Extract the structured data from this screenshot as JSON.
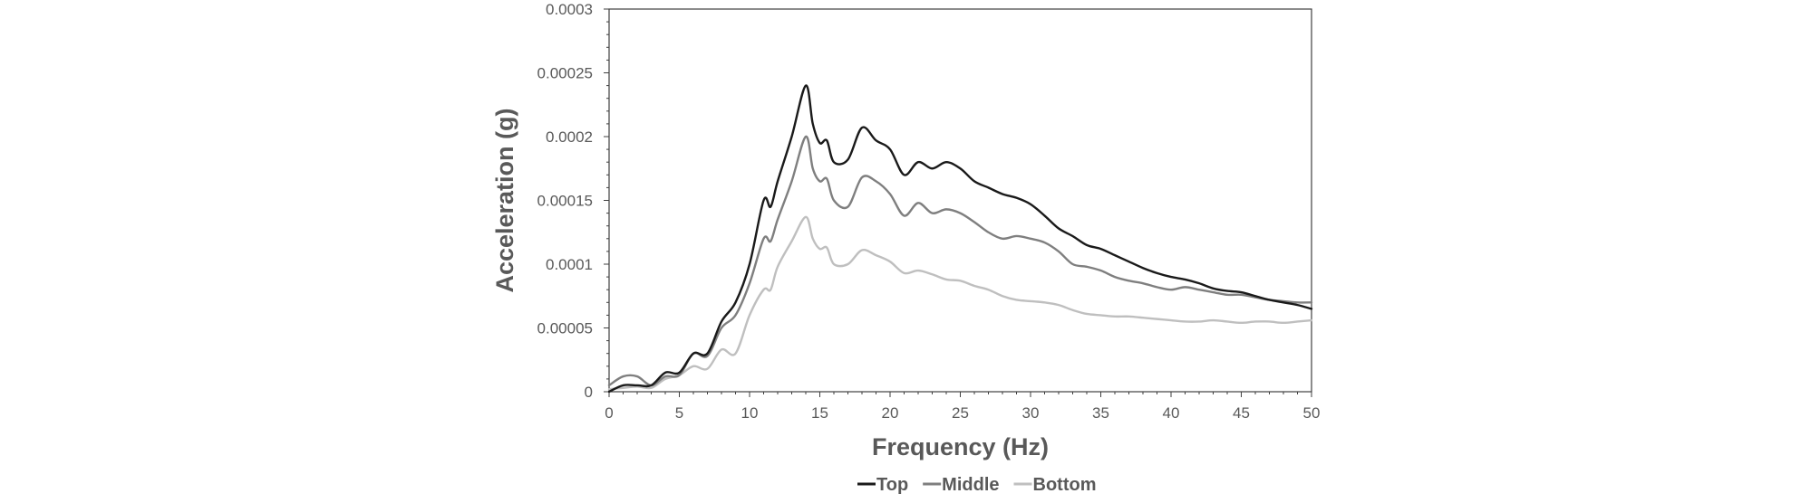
{
  "chart_data": {
    "type": "line",
    "title": "",
    "xlabel": "Frequency (Hz)",
    "ylabel": "Acceleration (g)",
    "xlim": [
      0,
      50
    ],
    "ylim": [
      0,
      0.0003
    ],
    "x_ticks": [
      "0",
      "5",
      "10",
      "15",
      "20",
      "25",
      "30",
      "35",
      "40",
      "45",
      "50"
    ],
    "y_ticks": [
      "0",
      "0.00005",
      "0.0001",
      "0.00015",
      "0.0002",
      "0.00025",
      "0.0003"
    ],
    "grid": false,
    "legend_position": "bottom",
    "x": [
      0,
      1,
      2,
      3,
      4,
      5,
      6,
      7,
      8,
      9,
      10,
      11,
      11.5,
      12,
      13,
      14,
      14.5,
      15,
      15.5,
      16,
      17,
      18,
      19,
      20,
      21,
      22,
      23,
      24,
      25,
      26,
      27,
      28,
      29,
      30,
      31,
      32,
      33,
      34,
      35,
      36,
      37,
      38,
      39,
      40,
      41,
      42,
      43,
      44,
      45,
      46,
      47,
      48,
      49,
      50
    ],
    "series": [
      {
        "name": "Top",
        "color": "#1a1a1a",
        "values": [
          0.0,
          5e-06,
          5e-06,
          5e-06,
          1.5e-05,
          1.5e-05,
          3e-05,
          3e-05,
          5.5e-05,
          7e-05,
          0.0001,
          0.00015,
          0.000145,
          0.000165,
          0.0002,
          0.00024,
          0.00021,
          0.000195,
          0.000197,
          0.00018,
          0.000182,
          0.000207,
          0.000197,
          0.00019,
          0.00017,
          0.00018,
          0.000175,
          0.00018,
          0.000175,
          0.000165,
          0.00016,
          0.000155,
          0.000152,
          0.000147,
          0.000138,
          0.000128,
          0.000122,
          0.000115,
          0.000112,
          0.000107,
          0.000102,
          9.7e-05,
          9.3e-05,
          9e-05,
          8.8e-05,
          8.5e-05,
          8.1e-05,
          7.9e-05,
          7.8e-05,
          7.5e-05,
          7.2e-05,
          7e-05,
          6.8e-05,
          6.5e-05
        ]
      },
      {
        "name": "Middle",
        "color": "#7f7f7f",
        "values": [
          5e-06,
          1.2e-05,
          1.2e-05,
          5e-06,
          1.2e-05,
          1.3e-05,
          3e-05,
          2.8e-05,
          5e-05,
          6e-05,
          8.5e-05,
          0.00012,
          0.000118,
          0.000135,
          0.000165,
          0.0002,
          0.000175,
          0.000165,
          0.000167,
          0.00015,
          0.000145,
          0.000168,
          0.000165,
          0.000155,
          0.000138,
          0.000148,
          0.00014,
          0.000143,
          0.00014,
          0.000133,
          0.000125,
          0.00012,
          0.000122,
          0.00012,
          0.000117,
          0.00011,
          0.0001,
          9.8e-05,
          9.5e-05,
          9e-05,
          8.7e-05,
          8.5e-05,
          8.2e-05,
          8e-05,
          8.2e-05,
          8e-05,
          7.8e-05,
          7.6e-05,
          7.6e-05,
          7.4e-05,
          7.2e-05,
          7.1e-05,
          7e-05,
          7e-05
        ]
      },
      {
        "name": "Bottom",
        "color": "#bfbfbf",
        "values": [
          2e-06,
          3e-06,
          4e-06,
          3e-06,
          1e-05,
          1.3e-05,
          2e-05,
          1.8e-05,
          3.3e-05,
          3e-05,
          6e-05,
          8e-05,
          8e-05,
          9.8e-05,
          0.000118,
          0.000137,
          0.00012,
          0.000112,
          0.000113,
          0.0001,
          0.0001,
          0.000111,
          0.000107,
          0.000102,
          9.3e-05,
          9.5e-05,
          9.2e-05,
          8.8e-05,
          8.7e-05,
          8.3e-05,
          8e-05,
          7.5e-05,
          7.2e-05,
          7.1e-05,
          7e-05,
          6.8e-05,
          6.4e-05,
          6.1e-05,
          6e-05,
          5.9e-05,
          5.9e-05,
          5.8e-05,
          5.7e-05,
          5.6e-05,
          5.5e-05,
          5.5e-05,
          5.6e-05,
          5.5e-05,
          5.4e-05,
          5.5e-05,
          5.5e-05,
          5.4e-05,
          5.5e-05,
          5.6e-05
        ]
      }
    ]
  }
}
